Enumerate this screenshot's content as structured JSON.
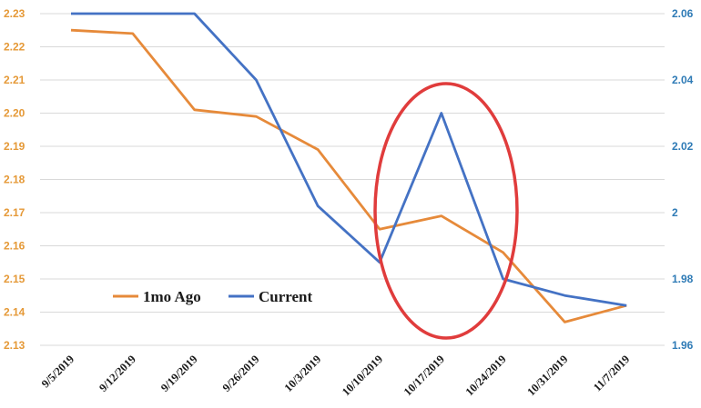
{
  "chart_data": {
    "type": "line",
    "x_categories": [
      "9/5/2019",
      "9/12/2019",
      "9/19/2019",
      "9/26/2019",
      "10/3/2019",
      "10/10/2019",
      "10/17/2019",
      "10/24/2019",
      "10/31/2019",
      "11/7/2019"
    ],
    "left_axis": {
      "ylim": [
        2.13,
        2.23
      ],
      "ticks": [
        "2.13",
        "2.14",
        "2.15",
        "2.16",
        "2.17",
        "2.18",
        "2.19",
        "2.20",
        "2.21",
        "2.22",
        "2.23"
      ],
      "color": "#e59937"
    },
    "right_axis": {
      "ylim": [
        1.96,
        2.06
      ],
      "ticks": [
        "1.96",
        "1.98",
        "2",
        "2.02",
        "2.04",
        "2.06"
      ],
      "color": "#2f7bb6"
    },
    "series": [
      {
        "name": "1mo Ago",
        "axis": "left",
        "color": "#e68a3a",
        "values": [
          2.225,
          2.224,
          2.201,
          2.199,
          2.189,
          2.165,
          2.169,
          2.158,
          2.137,
          2.142
        ]
      },
      {
        "name": "Current",
        "axis": "right",
        "color": "#4472c4",
        "values": [
          2.06,
          2.06,
          2.06,
          2.04,
          2.002,
          1.985,
          2.03,
          1.98,
          1.975,
          1.972
        ]
      }
    ],
    "grid": "horizontal",
    "legend_position": "lower-left",
    "annotation": {
      "shape": "ellipse",
      "color": "#e03c3c",
      "around": "10/17/2019"
    }
  }
}
